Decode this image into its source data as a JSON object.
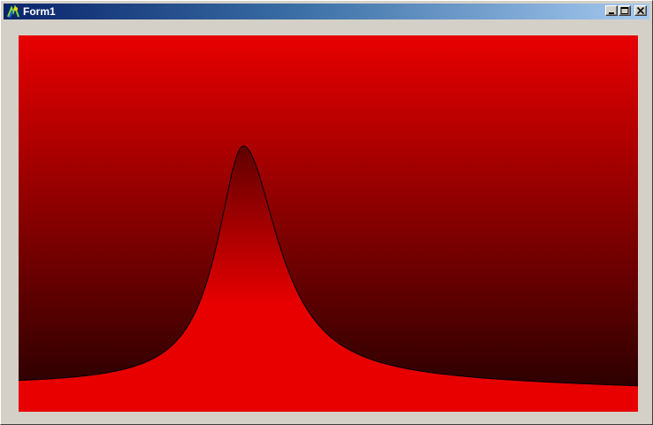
{
  "window": {
    "title": "Form1",
    "icon": "delphi-app-icon",
    "controls": {
      "minimize": "minimize-icon",
      "maximize": "maximize-icon",
      "close": "close-icon"
    }
  },
  "paintbox": {
    "background_gradient": {
      "top": "#e80000",
      "bottom": "#200000"
    },
    "curve_fill_gradient": {
      "top": "#600000",
      "bottom": "#e80000"
    },
    "outline_color": "#000000"
  }
}
